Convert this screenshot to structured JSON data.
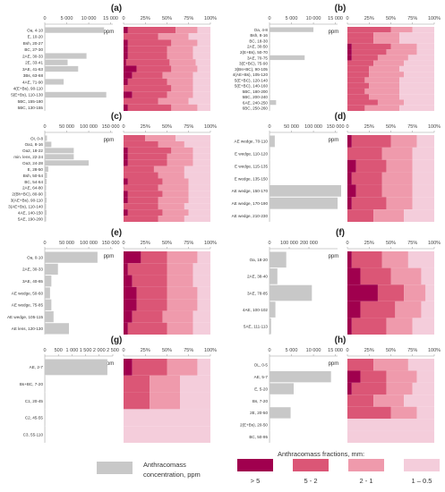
{
  "colors": {
    "gt5": "#a0004e",
    "r5_2": "#db5676",
    "r2_1": "#ef9aac",
    "r1_05": "#f4cddb",
    "bar": "#c8c8c8"
  },
  "legend": {
    "anthracomass_label_line1": "Anthracomass",
    "anthracomass_label_line2": "concentration, ppm",
    "fractions_title": "Anthracomass fractions, mm:",
    "fraction_labels": [
      "> 5",
      "5 - 2",
      "2 - 1",
      "1 – 0.5"
    ]
  },
  "chart_data": [
    {
      "panel": "(a)",
      "type": "bar",
      "ppm_label": "ppm",
      "ticks": [
        "0",
        "5 000",
        "10 000",
        "15 000"
      ],
      "xmax": 15000,
      "categories": [
        "Oa, 4-10",
        "E, 10-20",
        "Bsh, 20-27",
        "BC, 27-30",
        "2AE, 30-33",
        "2E, 33-41",
        "3AE, 41-63",
        "3Bs, 63-68",
        "4AE, 71-90",
        "4(E+Bs), 90-110",
        "5(E+Bs), 110-130",
        "5BC, 155-180",
        "5BC, 130-155"
      ],
      "ppm": [
        13500,
        0,
        0,
        0,
        9500,
        5200,
        7600,
        0,
        4300,
        0,
        14000,
        0,
        0
      ],
      "fractions": [
        [
          5,
          55,
          25,
          15
        ],
        [
          0,
          40,
          35,
          25
        ],
        [
          5,
          50,
          30,
          15
        ],
        [
          5,
          45,
          30,
          20
        ],
        [
          5,
          45,
          30,
          20
        ],
        [
          3,
          50,
          30,
          17
        ],
        [
          15,
          40,
          30,
          15
        ],
        [
          10,
          35,
          35,
          20
        ],
        [
          5,
          45,
          30,
          20
        ],
        [
          0,
          55,
          25,
          20
        ],
        [
          10,
          40,
          30,
          20
        ],
        [
          0,
          40,
          35,
          25
        ],
        [
          5,
          50,
          30,
          15
        ]
      ],
      "pct_ticks": [
        "0",
        "25%",
        "50%",
        "75%",
        "100%"
      ]
    },
    {
      "panel": "(b)",
      "type": "bar",
      "ppm_label": "ppm",
      "ticks": [
        "0",
        "5 000",
        "10 000",
        "15 000"
      ],
      "xmax": 15000,
      "categories": [
        "Oa, 4-8",
        "Bsh, 8-16",
        "BC, 18-30",
        "2AE, 30-50",
        "2(E+Bs), 50-70",
        "3AE, 70-75",
        "3(E+BC), 75-90",
        "3(Bs+BC), 90-105",
        "4(AE+Bs), 105-120",
        "5(E+BC), 120-140",
        "5(E+BC), 140-160",
        "5BC, 180-200",
        "5BC, 200-240",
        "6AE, 240-250",
        "6BC, 250-260"
      ],
      "ppm": [
        10000,
        0,
        0,
        0,
        0,
        8000,
        0,
        0,
        0,
        0,
        0,
        0,
        0,
        1500,
        0
      ],
      "fractions": [
        [
          0,
          50,
          25,
          25
        ],
        [
          0,
          30,
          30,
          40
        ],
        [
          0,
          30,
          30,
          40
        ],
        [
          5,
          45,
          30,
          20
        ],
        [
          5,
          40,
          35,
          20
        ],
        [
          5,
          30,
          35,
          30
        ],
        [
          0,
          30,
          35,
          35
        ],
        [
          0,
          25,
          35,
          40
        ],
        [
          0,
          25,
          40,
          35
        ],
        [
          0,
          20,
          40,
          40
        ],
        [
          0,
          25,
          35,
          40
        ],
        [
          0,
          20,
          40,
          40
        ],
        [
          0,
          25,
          35,
          40
        ],
        [
          0,
          35,
          30,
          35
        ],
        [
          0,
          20,
          40,
          40
        ]
      ],
      "pct_ticks": [
        "0",
        "25%",
        "50%",
        "75%",
        "100%"
      ]
    },
    {
      "panel": "(c)",
      "type": "bar",
      "ppm_label": "ppm",
      "ticks": [
        "0",
        "50 000",
        "100 000",
        "150 000"
      ],
      "xmax": 150000,
      "categories": [
        "OI, 0-8",
        "Oa1, 8-16",
        "Oa2, 18-22",
        "min. lens, 22-24",
        "Oa3, 24-28",
        "E, 28-50",
        "Bsh, 50-54",
        "BC, 54-64",
        "2AE, 64-80",
        "2(Bh+BC), 80-90",
        "3(AE+Bs), 90-110",
        "3(AE+Bs), 110-140",
        "4AE, 140-150",
        "5AE, 190-200"
      ],
      "ppm": [
        5000,
        15000,
        66000,
        66000,
        100000,
        8000,
        5000,
        4000,
        3000,
        3000,
        4000,
        3000,
        4000,
        3000
      ],
      "fractions": [
        [
          0,
          25,
          35,
          40
        ],
        [
          0,
          40,
          30,
          30
        ],
        [
          5,
          50,
          25,
          20
        ],
        [
          5,
          45,
          30,
          20
        ],
        [
          5,
          45,
          30,
          20
        ],
        [
          0,
          35,
          35,
          30
        ],
        [
          0,
          40,
          30,
          30
        ],
        [
          5,
          40,
          30,
          25
        ],
        [
          0,
          40,
          35,
          25
        ],
        [
          5,
          40,
          30,
          25
        ],
        [
          5,
          35,
          35,
          25
        ],
        [
          0,
          40,
          30,
          30
        ],
        [
          5,
          40,
          30,
          25
        ],
        [
          0,
          40,
          30,
          30
        ]
      ],
      "pct_ticks": [
        "0",
        "25%",
        "50%",
        "75%",
        "100%"
      ]
    },
    {
      "panel": "(d)",
      "type": "bar",
      "ppm_label": "ppm",
      "ticks": [
        "0",
        "50 000",
        "100 000",
        "150 000"
      ],
      "xmax": 150000,
      "categories": [
        "AE wedge, 70-110",
        "E wedge, 110-120",
        "E wedge, 115-135",
        "E wedge, 135-150",
        "AE wedge, 150-170",
        "AE wedge, 170-190",
        "AE wedge, 210-230"
      ],
      "ppm": [
        12000,
        0,
        0,
        0,
        180000,
        155000,
        0
      ],
      "fractions": [
        [
          5,
          45,
          30,
          20
        ],
        [
          0,
          40,
          35,
          25
        ],
        [
          10,
          35,
          30,
          25
        ],
        [
          5,
          35,
          35,
          25
        ],
        [
          10,
          30,
          35,
          25
        ],
        [
          5,
          40,
          30,
          25
        ],
        [
          0,
          30,
          35,
          35
        ]
      ],
      "pct_ticks": [
        "0",
        "25%",
        "50%",
        "75%",
        "100%"
      ]
    },
    {
      "panel": "(e)",
      "type": "bar",
      "ppm_label": "ppm",
      "ticks": [
        "0",
        "50 000",
        "100 000",
        "150 000"
      ],
      "xmax": 150000,
      "categories": [
        "Oa, 0-10",
        "2AE, 30-33",
        "3AE, 40-65",
        "AE wedge, 50-60",
        "AE wedge, 75-85",
        "AE wedge, 105-115",
        "AE lens, 120-130"
      ],
      "ppm": [
        120000,
        30000,
        15000,
        12000,
        15000,
        20000,
        55000
      ],
      "fractions": [
        [
          20,
          30,
          35,
          15
        ],
        [
          5,
          45,
          30,
          20
        ],
        [
          10,
          40,
          30,
          20
        ],
        [
          15,
          35,
          35,
          15
        ],
        [
          15,
          35,
          35,
          15
        ],
        [
          10,
          35,
          35,
          20
        ],
        [
          5,
          45,
          30,
          20
        ]
      ],
      "pct_ticks": [
        "0",
        "25%",
        "50%",
        "75%",
        "100%"
      ]
    },
    {
      "panel": "(f)",
      "type": "bar",
      "ppm_label": "ppm",
      "ticks": [
        "0",
        "100 000",
        "200 000"
      ],
      "xmax": 200000,
      "categories": [
        "Oa, 18-20",
        "2AE, 38-40",
        "3AE, 78-85",
        "4AE, 100-102",
        "5AE, 111-113"
      ],
      "ppm": [
        85000,
        40000,
        215000,
        30000,
        8000
      ],
      "fractions": [
        [
          5,
          35,
          30,
          30
        ],
        [
          15,
          35,
          35,
          15
        ],
        [
          35,
          30,
          25,
          10
        ],
        [
          15,
          40,
          30,
          15
        ],
        [
          5,
          40,
          30,
          25
        ]
      ],
      "pct_ticks": [
        "0",
        "25%",
        "50%",
        "75%",
        "100%"
      ]
    },
    {
      "panel": "(g)",
      "type": "bar",
      "ppm_label": "ppm",
      "ticks": [
        "0",
        "500",
        "1 000",
        "1 500",
        "2 000",
        "2 500"
      ],
      "xmax": 2500,
      "categories": [
        "AE, 2-7",
        "Bs+BC, 7-20",
        "C1, 20-45",
        "C2, 45-55",
        "C3, 55-110"
      ],
      "ppm": [
        2300,
        5,
        5,
        5,
        5
      ],
      "fractions": [
        [
          10,
          40,
          35,
          15
        ],
        [
          0,
          30,
          35,
          35
        ],
        [
          0,
          30,
          35,
          35
        ],
        [
          0,
          0,
          0,
          100
        ],
        [
          0,
          0,
          0,
          100
        ]
      ],
      "pct_ticks": [
        "0",
        "25%",
        "50%",
        "75%",
        "100%"
      ]
    },
    {
      "panel": "(h)",
      "type": "bar",
      "ppm_label": "ppm",
      "ticks": [
        "0",
        "5 000",
        "10 000",
        "15 000"
      ],
      "xmax": 15000,
      "categories": [
        "OL, 0-5",
        "AE, 5-7",
        "E, 5-20",
        "Bs, 7-20",
        "2E, 20-50",
        "2(E+Bs), 20-50",
        "BC, 50-95"
      ],
      "ppm": [
        0,
        14000,
        5500,
        0,
        4800,
        0,
        0
      ],
      "fractions": [
        [
          0,
          30,
          40,
          30
        ],
        [
          15,
          30,
          35,
          20
        ],
        [
          5,
          40,
          30,
          25
        ],
        [
          0,
          30,
          35,
          35
        ],
        [
          0,
          50,
          30,
          20
        ],
        [
          0,
          0,
          0,
          100
        ],
        [
          0,
          0,
          0,
          100
        ]
      ],
      "pct_ticks": [
        "0",
        "25%",
        "50%",
        "75%",
        "100%"
      ]
    }
  ]
}
